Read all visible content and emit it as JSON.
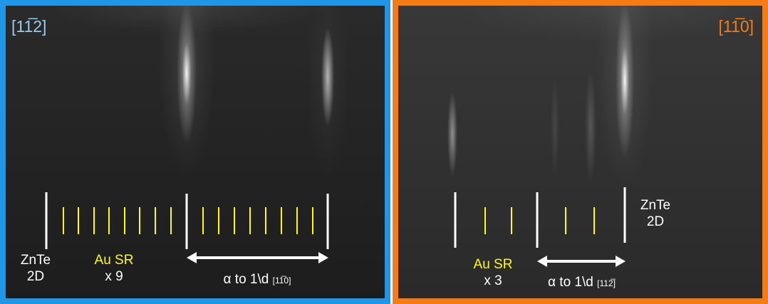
{
  "left_panel": {
    "orientation": "[11̅2]",
    "label_2d": "ZnTe\n2D",
    "label_sr": "Au SR",
    "label_mult": "x 9",
    "arrow_label": "α to 1\\d",
    "arrow_sub": "[11̅0]",
    "border_color": "#1f96e8",
    "orientation_color": "#9cc8f0"
  },
  "right_panel": {
    "orientation": "[11̅0]",
    "label_2d": "ZnTe\n2D",
    "label_sr": "Au SR",
    "label_mult": "x 3",
    "arrow_label": "α to 1\\d",
    "arrow_sub": "[112̅]",
    "border_color": "#f57c14",
    "orientation_color": "#f57c14"
  },
  "colors": {
    "main_line": "#ffffff",
    "sr_line": "#ffff00"
  }
}
